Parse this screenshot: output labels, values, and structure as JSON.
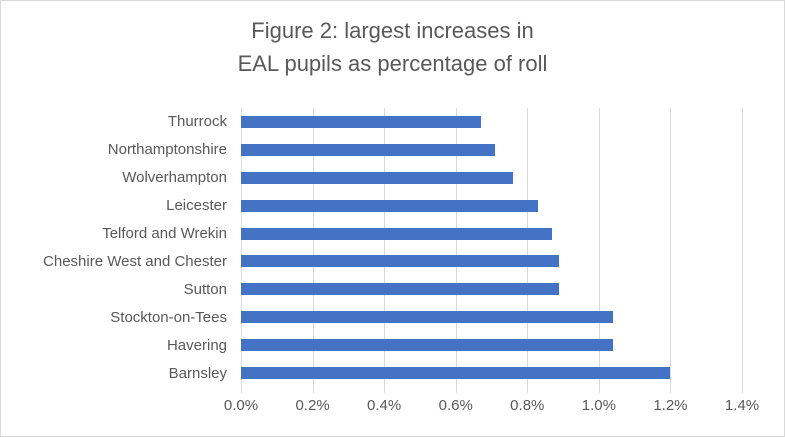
{
  "chart_data": {
    "type": "bar",
    "orientation": "horizontal",
    "title": "Figure 2: largest increases in EAL pupils as percentage of roll",
    "title_lines": [
      "Figure 2: largest increases in",
      "EAL pupils as percentage of roll"
    ],
    "categories": [
      "Thurrock",
      "Northamptonshire",
      "Wolverhampton",
      "Leicester",
      "Telford and Wrekin",
      "Cheshire West and Chester",
      "Sutton",
      "Stockton-on-Tees",
      "Havering",
      "Barnsley"
    ],
    "category_order": "top-to-bottom",
    "values": [
      0.67,
      0.71,
      0.76,
      0.83,
      0.87,
      0.89,
      0.89,
      1.04,
      1.04,
      1.2
    ],
    "value_unit": "percent",
    "xlabel": "",
    "ylabel": "",
    "xlim": [
      0,
      1.4
    ],
    "x_ticks": [
      0.0,
      0.2,
      0.4,
      0.6,
      0.8,
      1.0,
      1.2,
      1.4
    ],
    "x_tick_labels": [
      "0.0%",
      "0.2%",
      "0.4%",
      "0.6%",
      "0.8%",
      "1.0%",
      "1.2%",
      "1.4%"
    ],
    "grid": true,
    "legend": false,
    "bar_color": "#4472C4"
  },
  "colors": {
    "bar": "#4472C4",
    "gridline": "#D9D9D9",
    "text": "#595959",
    "frame_border": "#D9D9D9",
    "background": "#FFFFFF"
  }
}
